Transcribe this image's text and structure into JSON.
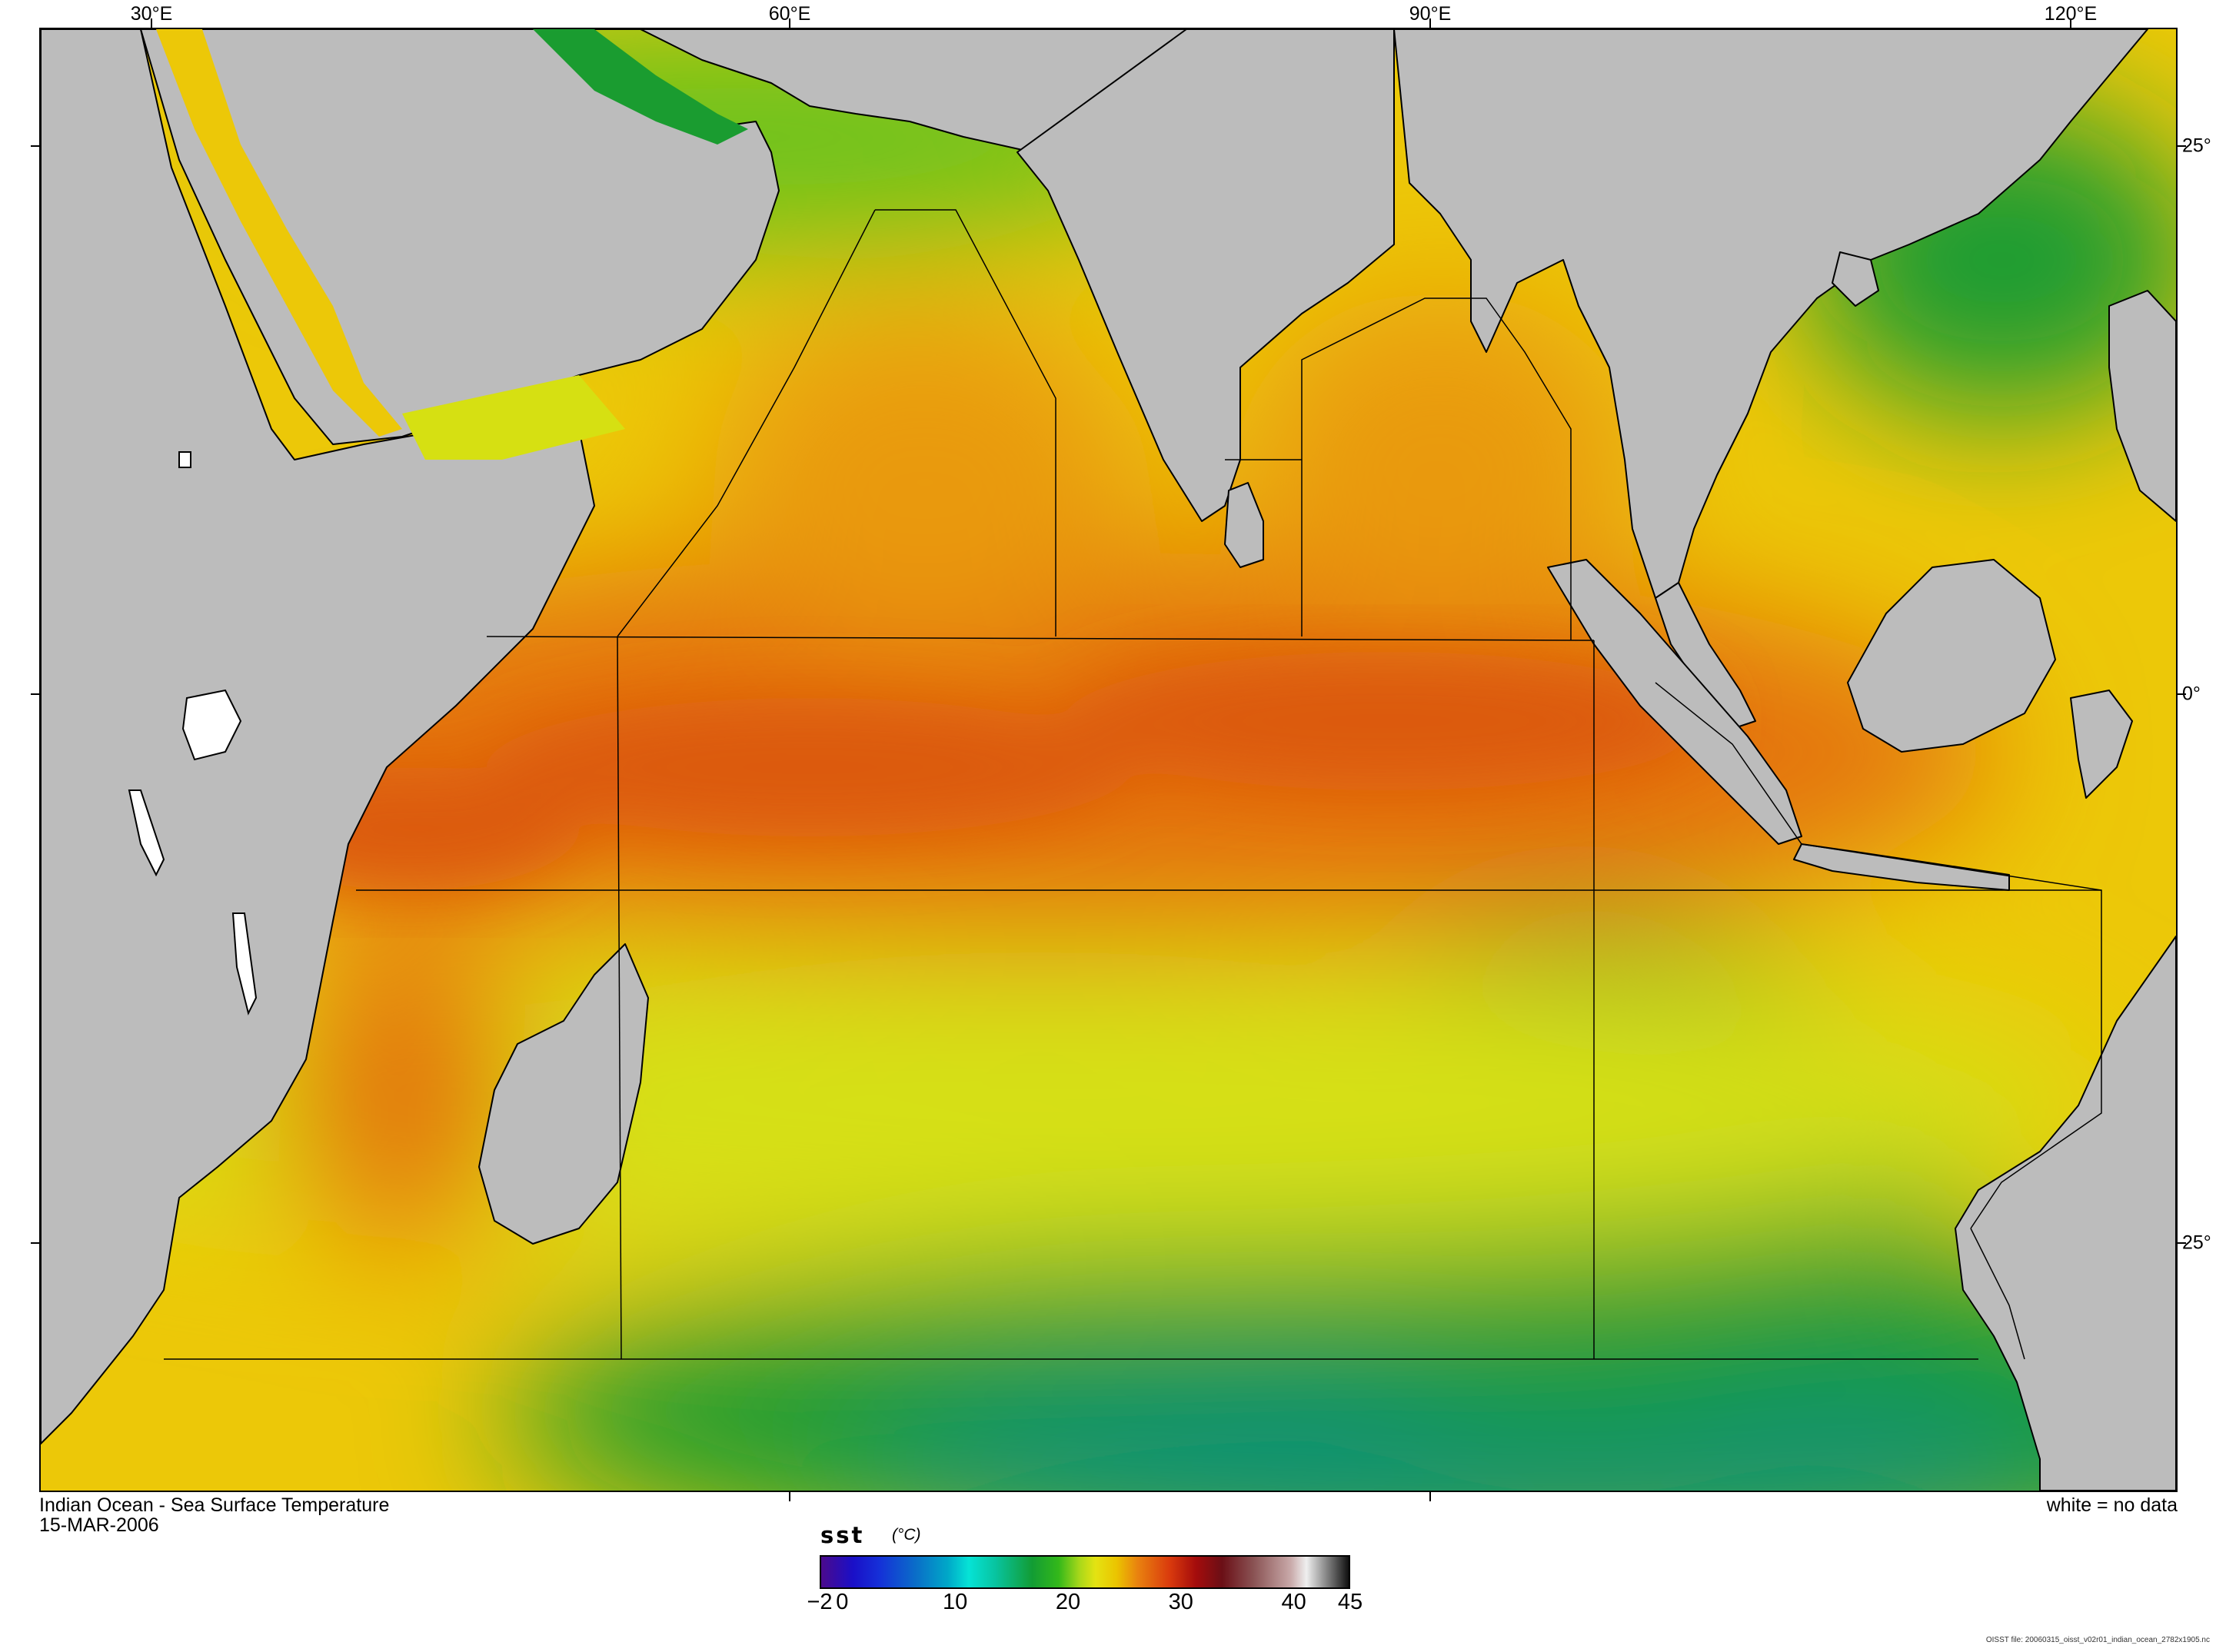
{
  "longitude_labels": [
    "30°E",
    "60°E",
    "90°E",
    "120°E"
  ],
  "latitude_labels": [
    "25°",
    "0°",
    "25°"
  ],
  "map": {
    "land_color": "#bcbcbc",
    "coast_color": "#000000",
    "no_data_color": "#ffffff",
    "palette": [
      "#0b8f7a",
      "#1a9c30",
      "#6cc21a",
      "#d6e012",
      "#ecc808",
      "#e99a0c",
      "#e4730f",
      "#dc5a0d"
    ]
  },
  "caption": {
    "title": "Indian Ocean - Sea Surface Temperature",
    "date": "15-MAR-2006",
    "no_data_note": "white = no data"
  },
  "colorbar": {
    "name": "sst",
    "unit": "(°C)",
    "ticks": [
      "−2",
      "0",
      "10",
      "20",
      "30",
      "40",
      "45"
    ],
    "tick_values": [
      -2,
      0,
      10,
      20,
      30,
      40,
      45
    ],
    "range": [
      -2,
      45
    ]
  },
  "file_note": "OISST file: 20060315_oisst_v02r01_indian_ocean_2782x1905.nc"
}
